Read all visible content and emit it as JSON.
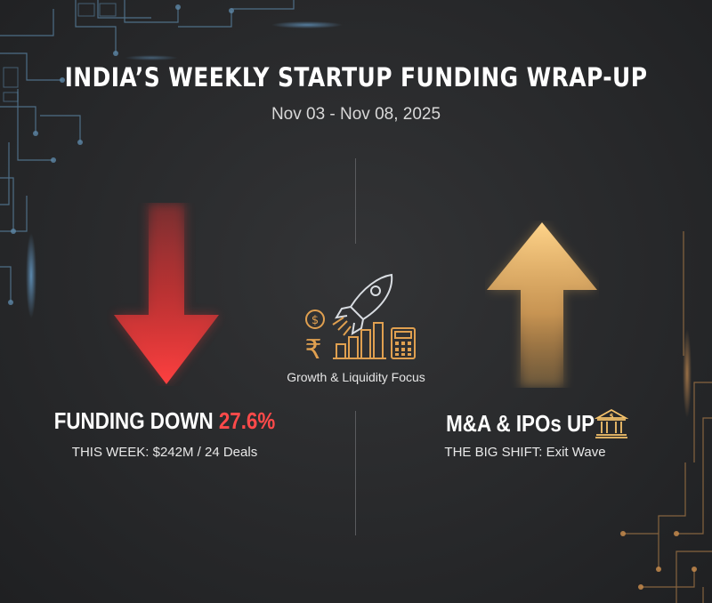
{
  "header": {
    "title": "INDIA’S WEEKLY STARTUP FUNDING WRAP-UP",
    "date_range": "Nov 03 - Nov 08, 2025"
  },
  "left_panel": {
    "heading_prefix": "FUNDING DOWN",
    "heading_value": "27.6%",
    "subtext": "THIS WEEK: $242M / 24 Deals",
    "arrow_icon": "arrow-down-icon",
    "accent_color": "#ff4a4a"
  },
  "center": {
    "label": "Growth & Liquidity Focus",
    "icons": [
      "rocket-icon",
      "coin-icon",
      "rupee-icon",
      "bar-chart-icon",
      "calculator-icon"
    ]
  },
  "right_panel": {
    "heading": "M&A & IPOs UP",
    "subtext": "THE BIG SHIFT: Exit Wave",
    "arrow_icon": "arrow-up-icon",
    "side_icon": "bank-icon",
    "accent_color": "#f5c26b"
  },
  "colors": {
    "background": "#2a2b2d",
    "circuit_blue": "#6ab6e8",
    "circuit_orange": "#e0a050",
    "down_red": "#ff3b3b",
    "up_gold": "#f5c26b"
  }
}
